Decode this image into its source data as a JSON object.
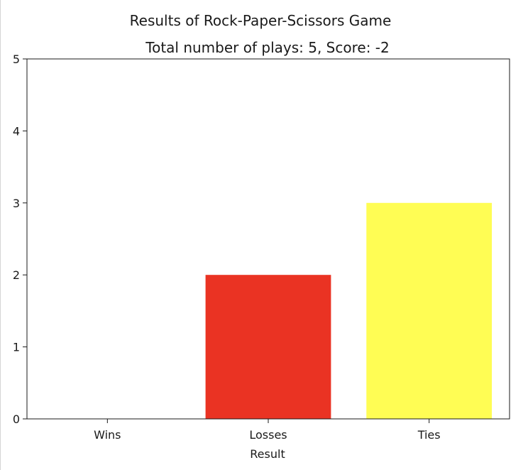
{
  "chart_data": {
    "type": "bar",
    "title": "Results of Rock-Paper-Scissors Game",
    "subtitle": "Total number of plays: 5, Score: -2",
    "xlabel": "Result",
    "ylabel": "",
    "categories": [
      "Wins",
      "Losses",
      "Ties"
    ],
    "values": [
      0,
      2,
      3
    ],
    "colors": [
      "#4caf50",
      "#ea3323",
      "#fffd54"
    ],
    "ylim": [
      0,
      5
    ],
    "yticks": [
      "0",
      "1",
      "2",
      "3",
      "4",
      "5"
    ],
    "grid": false,
    "legend": "none"
  }
}
